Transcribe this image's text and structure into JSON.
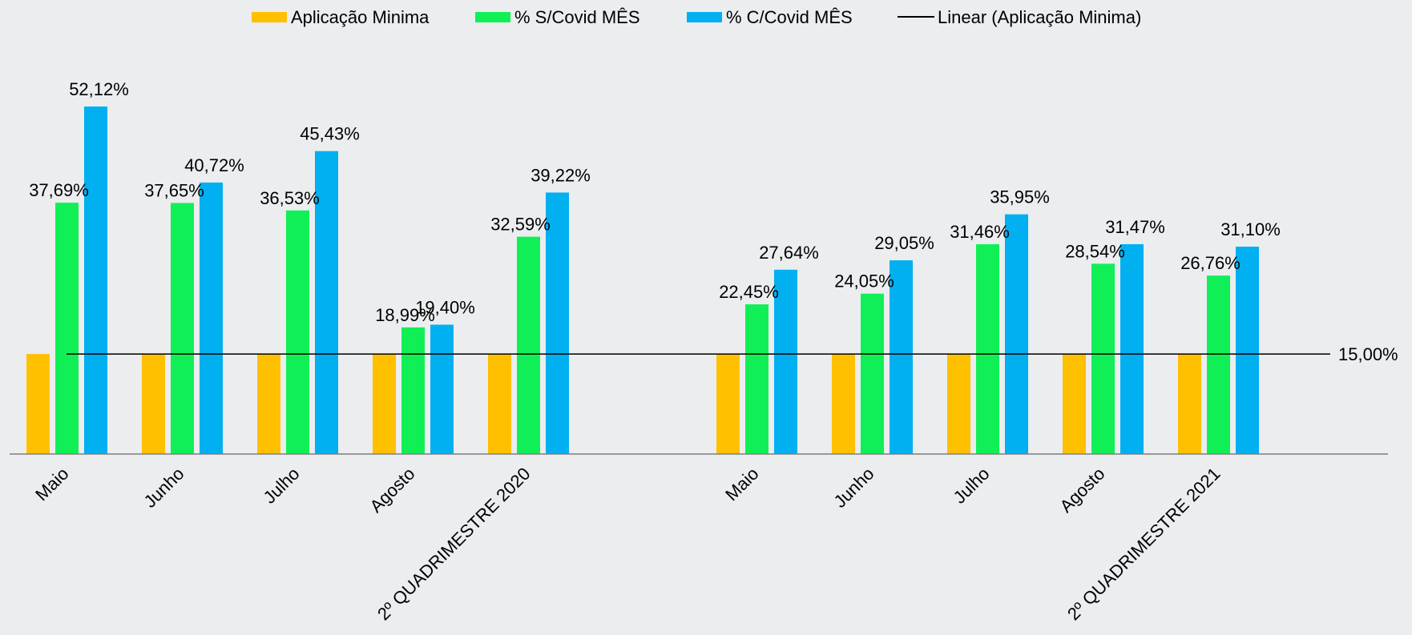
{
  "chart_data": {
    "type": "bar",
    "title": "",
    "xlabel": "",
    "ylabel": "",
    "ylim": [
      0,
      0.6
    ],
    "grid": false,
    "legend_position": "top",
    "groups": [
      {
        "categories": [
          "Maio",
          "Junho",
          "Julho",
          "Agosto",
          "2º QUADRIMESTRE 2020"
        ]
      },
      {
        "categories": [
          "Maio",
          "Junho",
          "Julho",
          "Agosto",
          "2º QUADRIMESTRE 2021"
        ]
      }
    ],
    "series": [
      {
        "name": "Aplicação Minima",
        "color": "#ffc000",
        "values": [
          0.15,
          0.15,
          0.15,
          0.15,
          0.15,
          0.15,
          0.15,
          0.15,
          0.15,
          0.15
        ],
        "labels": []
      },
      {
        "name": "% S/Covid MÊS",
        "color": "#10f056",
        "values": [
          0.3769,
          0.3765,
          0.3653,
          0.1899,
          0.3259,
          0.2245,
          0.2405,
          0.3146,
          0.2854,
          0.2676
        ],
        "labels": [
          "37,69%",
          "37,65%",
          "36,53%",
          "18,99%",
          "32,59%",
          "22,45%",
          "24,05%",
          "31,46%",
          "28,54%",
          "26,76%"
        ]
      },
      {
        "name": "% C/Covid MÊS",
        "color": "#00b0f0",
        "values": [
          0.5212,
          0.4072,
          0.4543,
          0.194,
          0.3922,
          0.2764,
          0.2905,
          0.3595,
          0.3147,
          0.311
        ],
        "labels": [
          "52,12%",
          "40,72%",
          "45,43%",
          "19,40%",
          "39,22%",
          "27,64%",
          "29,05%",
          "35,95%",
          "31,47%",
          "31,10%"
        ]
      }
    ],
    "trendline": {
      "name": "Linear (Aplicação Minima)",
      "color": "#000000",
      "value": 0.15,
      "label": "15,00%"
    }
  }
}
